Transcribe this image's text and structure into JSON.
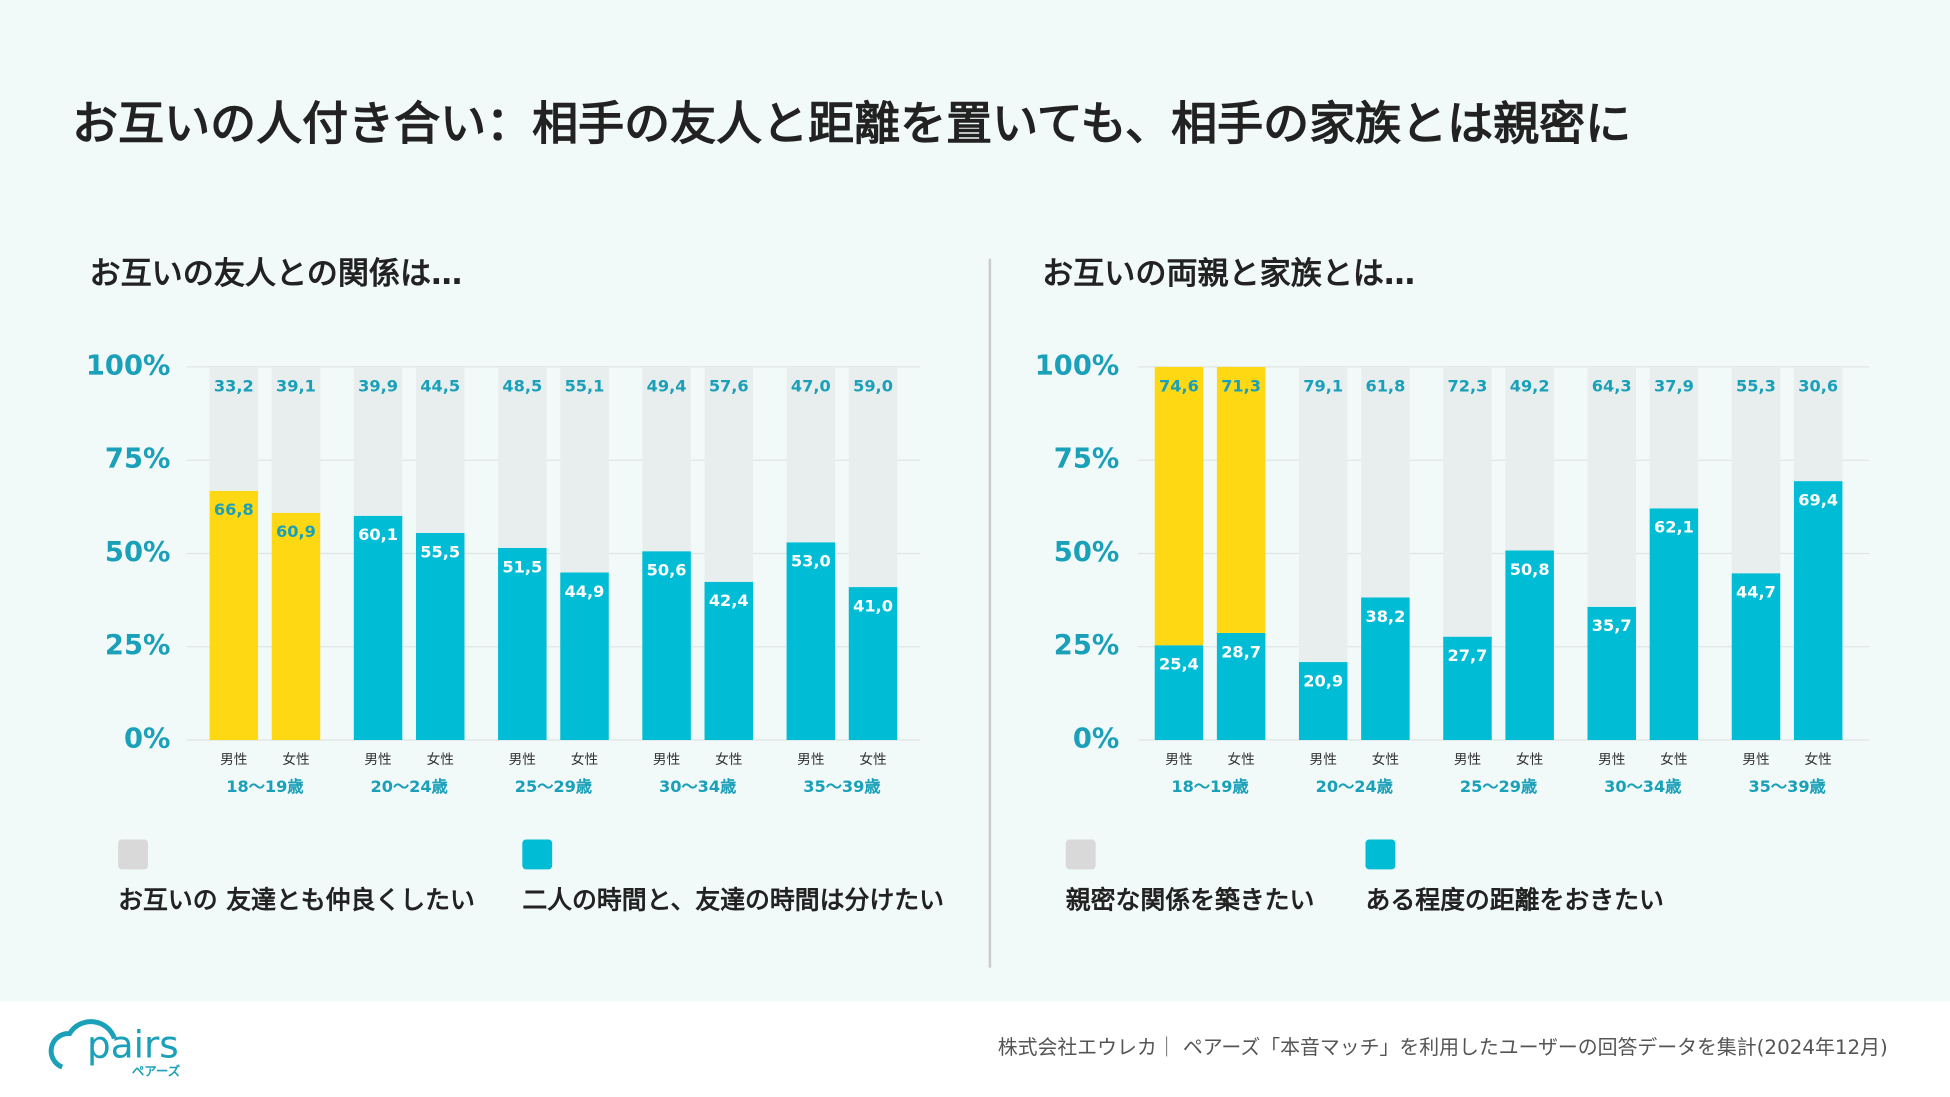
{
  "page_title": "お互いの人付き合い：相手の友人と距離を置いても、相手の家族とは親密に",
  "footer": "株式会社エウレカ｜ ペアーズ「本音マッチ」を利用したユーザーの回答データを集計(2024年12月)",
  "logo": {
    "name": "pairs",
    "sub": "ペアーズ"
  },
  "chart_data": [
    {
      "type": "stacked_bar",
      "title": "お互いの友人との関係は…",
      "categories": [
        "男性",
        "女性",
        "男性",
        "女性",
        "男性",
        "女性",
        "男性",
        "女性",
        "男性",
        "女性"
      ],
      "groups": [
        "18〜19歳",
        "20〜24歳",
        "25〜29歳",
        "30〜34歳",
        "35〜39歳"
      ],
      "ylim": [
        0,
        100
      ],
      "yticks": [
        {
          "value": 0,
          "label": "0%"
        },
        {
          "value": 25,
          "label": "25%"
        },
        {
          "value": 50,
          "label": "50%"
        },
        {
          "value": 75,
          "label": "75%"
        },
        {
          "value": 100,
          "label": "100%"
        }
      ],
      "grid": true,
      "series": [
        {
          "name": "お互いの 友達とも仲良くしたい",
          "color": "#d9d9d9",
          "colors": [
            "#e8eeed",
            "#e8eeed",
            "#e8eeed",
            "#e8eeed",
            "#e8eeed",
            "#e8eeed",
            "#e8eeed",
            "#e8eeed",
            "#e8eeed",
            "#e8eeed"
          ],
          "values": [
            33.2,
            39.1,
            39.9,
            44.5,
            48.5,
            55.1,
            49.4,
            57.6,
            47.0,
            59.0
          ],
          "value_labels": [
            "33,2",
            "39,1",
            "39,9",
            "44,5",
            "48,5",
            "55,1",
            "49,4",
            "57,6",
            "47,0",
            "59,0"
          ]
        },
        {
          "name": "二人の時間と、友達の時間は分けたい",
          "color": "#00bcd4",
          "colors": [
            "#ffd814",
            "#ffd814",
            "#00bcd4",
            "#00bcd4",
            "#00bcd4",
            "#00bcd4",
            "#00bcd4",
            "#00bcd4",
            "#00bcd4",
            "#00bcd4"
          ],
          "values": [
            66.8,
            60.9,
            60.1,
            55.5,
            51.5,
            44.9,
            50.6,
            42.4,
            53.0,
            41.0
          ],
          "value_labels": [
            "66,8",
            "60,9",
            "60,1",
            "55,5",
            "51,5",
            "44,9",
            "50,6",
            "42,4",
            "53,0",
            "41,0"
          ]
        }
      ]
    },
    {
      "type": "stacked_bar",
      "title": "お互いの両親と家族とは…",
      "categories": [
        "男性",
        "女性",
        "男性",
        "女性",
        "男性",
        "女性",
        "男性",
        "女性",
        "男性",
        "女性"
      ],
      "groups": [
        "18〜19歳",
        "20〜24歳",
        "25〜29歳",
        "30〜34歳",
        "35〜39歳"
      ],
      "ylim": [
        0,
        100
      ],
      "yticks": [
        {
          "value": 0,
          "label": "0%"
        },
        {
          "value": 25,
          "label": "25%"
        },
        {
          "value": 50,
          "label": "50%"
        },
        {
          "value": 75,
          "label": "75%"
        },
        {
          "value": 100,
          "label": "100%"
        }
      ],
      "grid": true,
      "series": [
        {
          "name": "親密な関係を築きたい",
          "color": "#d9d9d9",
          "colors": [
            "#ffd814",
            "#ffd814",
            "#e8eeed",
            "#e8eeed",
            "#e8eeed",
            "#e8eeed",
            "#e8eeed",
            "#e8eeed",
            "#e8eeed",
            "#e8eeed"
          ],
          "values": [
            74.6,
            71.3,
            79.1,
            61.8,
            72.3,
            49.2,
            64.3,
            37.9,
            55.3,
            30.6
          ],
          "value_labels": [
            "74,6",
            "71,3",
            "79,1",
            "61,8",
            "72,3",
            "49,2",
            "64,3",
            "37,9",
            "55,3",
            "30,6"
          ]
        },
        {
          "name": "ある程度の距離をおきたい",
          "color": "#00bcd4",
          "colors": [
            "#00bcd4",
            "#00bcd4",
            "#00bcd4",
            "#00bcd4",
            "#00bcd4",
            "#00bcd4",
            "#00bcd4",
            "#00bcd4",
            "#00bcd4",
            "#00bcd4"
          ],
          "values": [
            25.4,
            28.7,
            20.9,
            38.2,
            27.7,
            50.8,
            35.7,
            62.1,
            44.7,
            69.4
          ],
          "value_labels": [
            "25,4",
            "28,7",
            "20,9",
            "38,2",
            "27,7",
            "50,8",
            "35,7",
            "62,1",
            "44,7",
            "69,4"
          ]
        }
      ]
    }
  ]
}
